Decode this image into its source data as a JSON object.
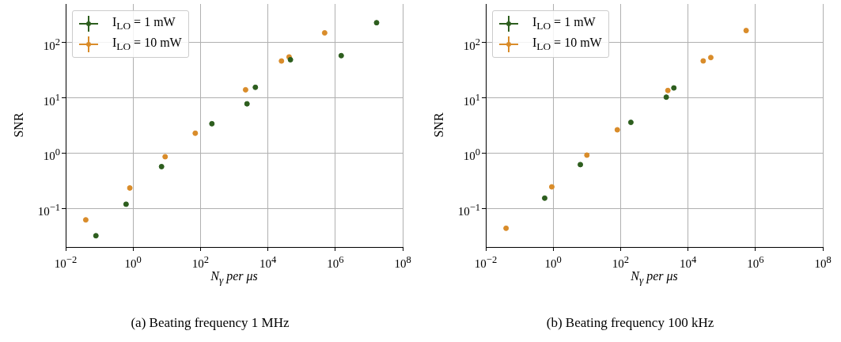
{
  "chart_data": [
    {
      "type": "scatter",
      "xlabel": "N$_{γ}$ per μs",
      "ylabel": "SNR",
      "log": "xy",
      "grid": true,
      "legend": "top left",
      "marker": "circle",
      "xlim": [
        0.01,
        100000000
      ],
      "ylim": [
        0.02,
        500
      ],
      "xticks": [
        {
          "value": 0.01,
          "label": "10$^{−2}$"
        },
        {
          "value": 1,
          "label": "10$^{0}$"
        },
        {
          "value": 100,
          "label": "10$^{2}$"
        },
        {
          "value": 10000,
          "label": "10$^{4}$"
        },
        {
          "value": 1000000,
          "label": "10$^{6}$"
        },
        {
          "value": 100000000,
          "label": "10$^{8}$"
        }
      ],
      "yticks": [
        {
          "value": 0.1,
          "label": "10$^{−1}$"
        },
        {
          "value": 1,
          "label": "10$^{0}$"
        },
        {
          "value": 10,
          "label": "10$^{1}$"
        },
        {
          "value": 100,
          "label": "10$^{2}$"
        }
      ],
      "series": [
        {
          "name": "I$_{LO}$ = 1 mW",
          "color": "#2d5e1e",
          "x": [
            0.079,
            0.62,
            7,
            218,
            2400,
            4250,
            46700,
            1500000,
            16800000
          ],
          "values": [
            0.032,
            0.119,
            0.57,
            3.4,
            7.8,
            15.5,
            49,
            58,
            229
          ]
        },
        {
          "name": "I$_{LO}$ = 10 mW",
          "color": "#d98c2a",
          "x": [
            0.0395,
            0.8,
            8.95,
            70,
            2180,
            25300,
            42600,
            484000
          ],
          "values": [
            0.062,
            0.234,
            0.86,
            2.29,
            14,
            46.4,
            55,
            150
          ]
        }
      ],
      "annotations": [
        "(a) Beating frequency 1 MHz"
      ]
    },
    {
      "type": "scatter",
      "xlabel": "N$_{γ}$ per μs",
      "ylabel": "SNR",
      "log": "xy",
      "grid": true,
      "legend": "top left",
      "marker": "circle",
      "xlim": [
        0.01,
        100000000
      ],
      "ylim": [
        0.02,
        500
      ],
      "xticks": [
        {
          "value": 0.01,
          "label": "10$^{−2}$"
        },
        {
          "value": 1,
          "label": "10$^{0}$"
        },
        {
          "value": 100,
          "label": "10$^{2}$"
        },
        {
          "value": 10000,
          "label": "10$^{4}$"
        },
        {
          "value": 1000000,
          "label": "10$^{6}$"
        },
        {
          "value": 100000000,
          "label": "10$^{8}$"
        }
      ],
      "yticks": [
        {
          "value": 0.1,
          "label": "10$^{−1}$"
        },
        {
          "value": 1,
          "label": "10$^{0}$"
        },
        {
          "value": 10,
          "label": "10$^{1}$"
        },
        {
          "value": 100,
          "label": "10$^{2}$"
        }
      ],
      "series": [
        {
          "name": "I$_{LO}$ = 1 mW",
          "color": "#2d5e1e",
          "x": [
            0.56,
            6.4,
            202,
            2270,
            3810
          ],
          "values": [
            0.153,
            0.62,
            3.6,
            10.3,
            15.1
          ]
        },
        {
          "name": "I$_{LO}$ = 10 mW",
          "color": "#d98c2a",
          "x": [
            0.04,
            0.91,
            10,
            80,
            2530,
            28300,
            47500,
            532000
          ],
          "values": [
            0.0436,
            0.245,
            0.92,
            2.64,
            13.6,
            46.6,
            53.7,
            165
          ]
        }
      ],
      "annotations": [
        "(b) Beating frequency 100 kHz"
      ]
    }
  ]
}
